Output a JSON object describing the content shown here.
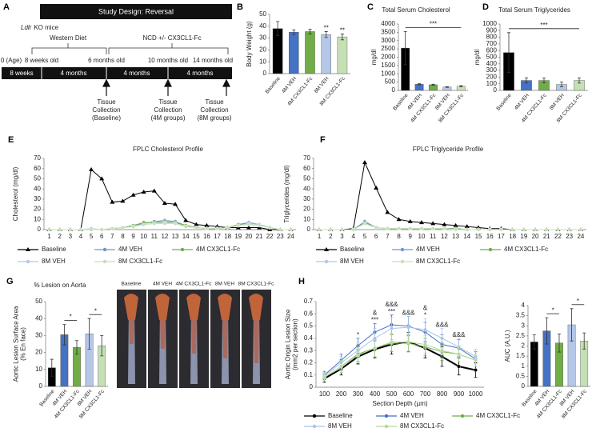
{
  "panel_labels": [
    "A",
    "B",
    "C",
    "D",
    "E",
    "F",
    "G",
    "H"
  ],
  "timeline": {
    "title": "Study Design: Reversal",
    "mouse_model": "Ldlr",
    "mouse_model_suffix": "KO mice",
    "phase_labels": [
      "Western Diet",
      "NCD +/- CX3CL1-Fc"
    ],
    "ages": [
      "0 (Age)",
      "8 weeks old",
      "6 months old",
      "10 months old",
      "14 months old"
    ],
    "segments": [
      "8 weeks",
      "4 months",
      "4 months",
      "4 months"
    ],
    "collections": [
      [
        "Tissue",
        "Collection",
        "(Baseline)"
      ],
      [
        "Tissue",
        "Collection",
        "(4M groups)"
      ],
      [
        "Tissue",
        "Collection",
        "(8M groups)"
      ]
    ]
  },
  "aorta_images": {
    "labels": [
      "Baseline",
      "4M VEH",
      "4M CX3CL1-Fc",
      "8M VEH",
      "8M CX3CL1-Fc"
    ]
  },
  "chart_data": [
    {
      "type": "bar",
      "y_label": "Body Weight (g)",
      "categories": [
        "Baseline",
        "4M VEH",
        "4M CX3CL1-Fc",
        "8M VEH",
        "8M CX3CL1-Fc"
      ],
      "values": [
        38,
        35,
        35.5,
        33,
        31
      ],
      "errors": [
        6,
        2,
        2,
        2.5,
        2.5
      ],
      "colors": [
        "#000000",
        "#4472c4",
        "#70ad47",
        "#b4c7e7",
        "#c5e0b4"
      ],
      "ylim": [
        0,
        50
      ],
      "yticks": [
        0,
        10,
        20,
        30,
        40,
        50
      ],
      "annotations": [
        {
          "text": "**"
        },
        {
          "text": "**"
        }
      ]
    },
    {
      "type": "bar",
      "title": "Total Serum Cholesterol",
      "y_label": "mg/dl",
      "categories": [
        "Baseline",
        "4M VEH",
        "4M CX3CL1-Fc",
        "8M VEH",
        "8M CX3CL1-Fc"
      ],
      "values": [
        2550,
        370,
        340,
        200,
        250
      ],
      "errors": [
        1000,
        30,
        30,
        20,
        40
      ],
      "colors": [
        "#000000",
        "#4472c4",
        "#70ad47",
        "#b4c7e7",
        "#c5e0b4"
      ],
      "ylim": [
        0,
        4000
      ],
      "yticks": [
        0,
        500,
        1000,
        1500,
        2000,
        2500,
        3000,
        3500,
        4000
      ],
      "annotations": [
        {
          "text": "***"
        }
      ]
    },
    {
      "type": "bar",
      "title": "Total Serum Triglycerides",
      "y_label": "mg/dl",
      "categories": [
        "Baseline",
        "4M VEH",
        "4M CX3CL1-Fc",
        "8M VEH",
        "8M CX3CL1-Fc"
      ],
      "values": [
        570,
        150,
        150,
        90,
        150
      ],
      "errors": [
        300,
        40,
        35,
        35,
        40
      ],
      "colors": [
        "#000000",
        "#4472c4",
        "#70ad47",
        "#b4c7e7",
        "#c5e0b4"
      ],
      "ylim": [
        0,
        1000
      ],
      "yticks": [
        0,
        100,
        200,
        300,
        400,
        500,
        600,
        700,
        800,
        900,
        1000
      ],
      "annotations": [
        {
          "text": "***"
        }
      ]
    },
    {
      "type": "line",
      "title": "FPLC Cholesterol Profile",
      "y_label": "Cholesterol (mg/dl)",
      "categories": [
        1,
        2,
        3,
        4,
        5,
        6,
        7,
        8,
        9,
        10,
        11,
        12,
        13,
        14,
        15,
        16,
        17,
        18,
        19,
        20,
        21,
        22,
        23,
        24
      ],
      "ylim": [
        0,
        70
      ],
      "yticks": [
        0,
        10,
        20,
        30,
        40,
        50,
        60,
        70
      ],
      "series": [
        {
          "name": "Baseline",
          "color": "#000000",
          "marker": "triangle",
          "values": [
            0,
            0,
            0,
            0,
            59,
            50,
            27,
            28,
            34,
            37,
            38,
            26,
            25,
            9,
            5,
            4,
            3,
            2,
            2,
            2,
            2,
            0,
            0,
            0
          ]
        },
        {
          "name": "4M VEH",
          "color": "#6f94d6",
          "marker": "circle",
          "values": [
            0,
            0,
            0,
            0,
            0,
            0,
            1,
            2,
            4,
            6,
            8,
            9,
            8,
            4,
            2,
            1,
            1,
            2,
            5,
            7,
            5,
            2,
            0,
            0
          ]
        },
        {
          "name": "4M CX3CL1-Fc",
          "color": "#70ad47",
          "marker": "circle",
          "values": [
            0,
            0,
            0,
            0,
            0,
            0,
            1,
            2,
            4,
            7,
            7,
            8,
            7,
            4,
            2,
            1,
            1,
            2,
            5,
            6,
            5,
            2,
            0,
            0
          ]
        },
        {
          "name": "8M VEH",
          "color": "#b4c7e7",
          "marker": "circle",
          "values": [
            0,
            0,
            0,
            0,
            1,
            0,
            1,
            2,
            3,
            5,
            6,
            7,
            6,
            3,
            2,
            1,
            1,
            2,
            4,
            6,
            5,
            2,
            0,
            0
          ]
        },
        {
          "name": "8M CX3CL1-Fc",
          "color": "#c5e0b4",
          "marker": "circle",
          "values": [
            0,
            0,
            0,
            0,
            0,
            0,
            1,
            2,
            3,
            5,
            6,
            6,
            6,
            3,
            2,
            1,
            1,
            2,
            4,
            5,
            4,
            2,
            0,
            0
          ]
        }
      ]
    },
    {
      "type": "line",
      "title": "FPLC Triglyceride Profile",
      "y_label": "Triglycerides (mg/dl)",
      "categories": [
        1,
        2,
        3,
        4,
        5,
        6,
        7,
        8,
        9,
        10,
        11,
        12,
        13,
        14,
        15,
        16,
        17,
        18,
        19,
        20,
        21,
        22,
        23,
        24
      ],
      "ylim": [
        0,
        70
      ],
      "yticks": [
        0,
        10,
        20,
        30,
        40,
        50,
        60,
        70
      ],
      "series": [
        {
          "name": "Baseline",
          "color": "#000000",
          "marker": "triangle",
          "values": [
            0,
            0,
            0,
            1,
            66,
            41,
            17,
            10,
            8,
            7,
            6,
            5,
            4,
            3,
            2,
            1,
            1,
            0,
            0,
            0,
            0,
            0,
            0,
            0
          ]
        },
        {
          "name": "4M VEH",
          "color": "#6f94d6",
          "marker": "circle",
          "values": [
            0,
            0,
            0,
            0,
            8,
            2,
            1,
            1,
            1,
            1,
            1,
            1,
            1,
            0,
            0,
            0,
            0,
            0,
            0,
            0,
            0,
            0,
            0,
            0
          ]
        },
        {
          "name": "4M CX3CL1-Fc",
          "color": "#70ad47",
          "marker": "circle",
          "values": [
            0,
            0,
            0,
            0,
            7,
            2,
            1,
            1,
            1,
            1,
            1,
            1,
            1,
            0,
            0,
            0,
            0,
            0,
            0,
            0,
            0,
            0,
            0,
            0
          ]
        },
        {
          "name": "8M VEH",
          "color": "#b4c7e7",
          "marker": "circle",
          "values": [
            0,
            0,
            0,
            0,
            6,
            2,
            1,
            1,
            1,
            1,
            1,
            1,
            0,
            0,
            0,
            0,
            0,
            0,
            0,
            0,
            0,
            0,
            0,
            0
          ]
        },
        {
          "name": "8M CX3CL1-Fc",
          "color": "#c5e0b4",
          "marker": "circle",
          "values": [
            0,
            0,
            0,
            0,
            6,
            2,
            1,
            1,
            1,
            1,
            1,
            1,
            0,
            0,
            0,
            0,
            0,
            0,
            0,
            0,
            0,
            0,
            0,
            0
          ]
        }
      ]
    },
    {
      "type": "bar",
      "title": "% Lesion on Aorta",
      "y_label": [
        "Aortic Lesion Surface Area",
        "(% En face)"
      ],
      "categories": [
        "Baseline",
        "4M VEH",
        "4M CX3CL1-Fc",
        "8M VEH",
        "8M CX3CL1-Fc"
      ],
      "values": [
        11,
        30.5,
        23,
        31,
        24
      ],
      "errors": [
        5,
        6,
        4,
        9,
        6
      ],
      "colors": [
        "#000000",
        "#4472c4",
        "#70ad47",
        "#b4c7e7",
        "#c5e0b4"
      ],
      "ylim": [
        0,
        50
      ],
      "yticks": [
        0,
        10,
        20,
        30,
        40,
        50
      ],
      "annotations": [
        {
          "text": "*"
        },
        {
          "text": "*"
        }
      ]
    },
    {
      "type": "line",
      "y_label": [
        "Aortic Origin Lesion Size",
        "(mm2 per section)"
      ],
      "x_label": "Section Depth (µm)",
      "categories": [
        100,
        200,
        300,
        400,
        500,
        600,
        700,
        800,
        900,
        1000
      ],
      "ylim": [
        0,
        0.7
      ],
      "yticks": [
        0,
        0.1,
        0.2,
        0.3,
        0.4,
        0.5,
        0.6,
        0.7
      ],
      "series": [
        {
          "name": "Baseline",
          "color": "#000000",
          "marker": "circle",
          "values": [
            0.07,
            0.15,
            0.25,
            0.31,
            0.35,
            0.37,
            0.32,
            0.25,
            0.17,
            0.14
          ],
          "errors": [
            0.03,
            0.05,
            0.06,
            0.07,
            0.08,
            0.08,
            0.08,
            0.08,
            0.07,
            0.06
          ]
        },
        {
          "name": "4M VEH",
          "color": "#4472c4",
          "marker": "circle",
          "values": [
            0.1,
            0.22,
            0.34,
            0.45,
            0.51,
            0.5,
            0.45,
            0.35,
            0.32,
            0.23
          ],
          "errors": [
            0.03,
            0.05,
            0.06,
            0.07,
            0.08,
            0.08,
            0.08,
            0.08,
            0.07,
            0.06
          ]
        },
        {
          "name": "4M CX3CL1-Fc",
          "color": "#70ad47",
          "marker": "circle",
          "values": [
            0.08,
            0.17,
            0.27,
            0.32,
            0.36,
            0.36,
            0.33,
            0.29,
            0.27,
            0.22
          ],
          "errors": [
            0.03,
            0.05,
            0.06,
            0.07,
            0.07,
            0.07,
            0.07,
            0.07,
            0.06,
            0.05
          ]
        },
        {
          "name": "8M VEH",
          "color": "#a9c4eb",
          "marker": "circle",
          "values": [
            0.09,
            0.2,
            0.3,
            0.4,
            0.48,
            0.49,
            0.47,
            0.4,
            0.33,
            0.25
          ],
          "errors": [
            0.03,
            0.05,
            0.06,
            0.08,
            0.09,
            0.09,
            0.09,
            0.08,
            0.07,
            0.06
          ]
        },
        {
          "name": "8M CX3CL1-Fc",
          "color": "#b5d99c",
          "marker": "circle",
          "values": [
            0.08,
            0.17,
            0.26,
            0.32,
            0.37,
            0.37,
            0.35,
            0.3,
            0.27,
            0.22
          ],
          "errors": [
            0.03,
            0.05,
            0.06,
            0.07,
            0.07,
            0.07,
            0.07,
            0.07,
            0.06,
            0.05
          ]
        }
      ],
      "annotations": [
        {
          "x": 300,
          "text": "*"
        },
        {
          "x": 400,
          "text": "***"
        },
        {
          "x": 400,
          "text": "&"
        },
        {
          "x": 500,
          "text": "***"
        },
        {
          "x": 500,
          "text": "&&&"
        },
        {
          "x": 600,
          "text": "&&&"
        },
        {
          "x": 700,
          "text": "*"
        },
        {
          "x": 700,
          "text": "&"
        },
        {
          "x": 800,
          "text": "&&&"
        },
        {
          "x": 900,
          "text": "&&&"
        }
      ]
    },
    {
      "type": "bar",
      "y_label": "AUC (A.U.)",
      "categories": [
        "Baseline",
        "4M VEH",
        "4M CX3CL1-Fc",
        "8M VEH",
        "8M CX3CL1-Fc"
      ],
      "values": [
        2.2,
        2.75,
        2.15,
        3.05,
        2.25
      ],
      "errors": [
        0.35,
        0.65,
        0.45,
        0.8,
        0.4
      ],
      "colors": [
        "#000000",
        "#4472c4",
        "#70ad47",
        "#b4c7e7",
        "#c5e0b4"
      ],
      "ylim": [
        0,
        4
      ],
      "yticks": [
        0,
        0.5,
        1,
        1.5,
        2,
        2.5,
        3,
        3.5,
        4
      ],
      "annotations": [
        {
          "text": "*"
        },
        {
          "text": "*"
        }
      ]
    }
  ]
}
